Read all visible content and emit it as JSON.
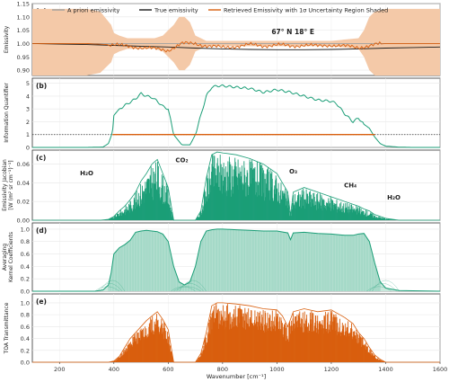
{
  "chart_data": [
    {
      "type": "line",
      "panel_label": "(a)",
      "ylabel": "Emissivity",
      "ylim": [
        0.88,
        1.15
      ],
      "yticks": [
        "0.90",
        "0.95",
        "1.00",
        "1.05",
        "1.10",
        "1.15"
      ],
      "annotation": "67° N 18° E",
      "legend": {
        "placement": "top",
        "entries": [
          {
            "label": "A priori emissivity",
            "color": "#a0a0a0"
          },
          {
            "label": "True emissivity",
            "color": "#1a1a1a"
          },
          {
            "label": "Retrieved Emissivity with 1σ Uncertainty Region Shaded",
            "color": "#d95f0e"
          }
        ]
      },
      "series": [
        {
          "name": "A priori emissivity",
          "x": [
            100,
            1600
          ],
          "values": [
            1.0,
            1.0
          ],
          "color": "#a0a0a0"
        },
        {
          "name": "True emissivity",
          "x": [
            100,
            200,
            300,
            400,
            500,
            600,
            700,
            800,
            900,
            1000,
            1100,
            1200,
            1300,
            1400,
            1500,
            1600
          ],
          "values": [
            1.0,
            0.998,
            0.996,
            0.993,
            0.99,
            0.987,
            0.983,
            0.98,
            0.978,
            0.977,
            0.977,
            0.978,
            0.98,
            0.983,
            0.985,
            0.987
          ],
          "color": "#1a1a1a"
        },
        {
          "name": "Retrieved Emissivity with 1σ Uncertainty Region Shaded",
          "x": [
            100,
            300,
            400,
            450,
            500,
            550,
            600,
            650,
            700,
            750,
            800,
            850,
            900,
            950,
            1000,
            1050,
            1100,
            1150,
            1200,
            1250,
            1300,
            1350,
            1400,
            1600
          ],
          "values": [
            1.0,
            1.0,
            0.995,
            0.99,
            0.985,
            0.98,
            0.975,
            1.0,
            1.0,
            0.99,
            0.985,
            0.99,
            0.995,
            0.992,
            0.995,
            0.99,
            0.995,
            0.99,
            0.995,
            0.99,
            0.985,
            0.995,
            1.0,
            1.0
          ],
          "color": "#d95f0e"
        }
      ],
      "uncertainty_band": {
        "x": [
          100,
          300,
          350,
          390,
          400,
          420,
          450,
          500,
          550,
          580,
          600,
          620,
          640,
          660,
          680,
          700,
          720,
          740,
          760,
          800,
          900,
          1000,
          1100,
          1200,
          1300,
          1320,
          1340,
          1360,
          1400,
          1500,
          1600
        ],
        "upper": [
          1.13,
          1.13,
          1.12,
          1.07,
          1.04,
          1.03,
          1.02,
          1.02,
          1.02,
          1.03,
          1.05,
          1.07,
          1.1,
          1.1,
          1.08,
          1.03,
          1.02,
          1.01,
          1.01,
          1.01,
          1.01,
          1.01,
          1.01,
          1.01,
          1.02,
          1.05,
          1.1,
          1.12,
          1.13,
          1.13,
          1.13
        ],
        "lower": [
          0.88,
          0.88,
          0.89,
          0.93,
          0.96,
          0.97,
          0.98,
          0.98,
          0.98,
          0.97,
          0.95,
          0.93,
          0.9,
          0.9,
          0.92,
          0.97,
          0.98,
          0.99,
          0.99,
          0.99,
          0.99,
          0.99,
          0.99,
          0.99,
          0.98,
          0.95,
          0.9,
          0.88,
          0.88,
          0.88,
          0.88
        ],
        "color": "#f4c9a8"
      }
    },
    {
      "type": "line",
      "panel_label": "(b)",
      "ylabel": "Information Quantifier",
      "ylim": [
        0,
        5.4
      ],
      "yticks": [
        "0",
        "1",
        "2",
        "3",
        "4",
        "5"
      ],
      "series": [
        {
          "x": [
            100,
            300,
            360,
            380,
            395,
            400,
            420,
            450,
            480,
            500,
            520,
            540,
            560,
            580,
            600,
            620,
            650,
            680,
            700,
            720,
            740,
            760,
            780,
            800,
            850,
            900,
            950,
            1000,
            1050,
            1100,
            1150,
            1200,
            1220,
            1250,
            1280,
            1300,
            1320,
            1340,
            1360,
            1380,
            1400,
            1450,
            1500,
            1600
          ],
          "values": [
            0,
            0,
            0.03,
            0.3,
            1.2,
            2.5,
            3.0,
            3.4,
            3.8,
            4.2,
            4.0,
            3.9,
            3.6,
            3.2,
            3.0,
            1.0,
            0.2,
            0.2,
            1.0,
            2.5,
            4.0,
            4.7,
            4.8,
            4.8,
            4.7,
            4.6,
            4.3,
            4.5,
            4.3,
            4.0,
            3.7,
            3.6,
            3.4,
            2.6,
            2.0,
            2.3,
            1.8,
            1.5,
            0.8,
            0.3,
            0.1,
            0.02,
            0,
            0
          ],
          "color": "#1b9e77"
        },
        {
          "x": [
            395,
            1360
          ],
          "values": [
            1.0,
            1.0
          ],
          "color": "#d95f0e"
        }
      ],
      "reference_line": {
        "y": 1.0,
        "style": "dotted",
        "color": "#333333"
      }
    },
    {
      "type": "line",
      "panel_label": "(c)",
      "ylabel": "Emissivity Jacobian [W (m² sr cm⁻¹)⁻¹]",
      "ylim": [
        0,
        0.075
      ],
      "yticks": [
        "0.00",
        "0.02",
        "0.04",
        "0.06"
      ],
      "annotations": [
        "H₂O",
        "CO₂",
        "O₃",
        "CH₄",
        "H₂O"
      ],
      "envelope": {
        "x": [
          100,
          350,
          380,
          400,
          420,
          440,
          460,
          480,
          500,
          520,
          540,
          560,
          580,
          600,
          620,
          640,
          660,
          680,
          700,
          720,
          740,
          760,
          780,
          800,
          850,
          900,
          950,
          1000,
          1020,
          1040,
          1050,
          1060,
          1100,
          1150,
          1200,
          1250,
          1300,
          1320,
          1340,
          1360,
          1380,
          1400,
          1450,
          1600
        ],
        "values": [
          0,
          0,
          0.001,
          0.004,
          0.01,
          0.015,
          0.022,
          0.03,
          0.042,
          0.05,
          0.06,
          0.065,
          0.05,
          0.035,
          0.0,
          0.0,
          0.0,
          0.0,
          0.0,
          0.01,
          0.045,
          0.07,
          0.073,
          0.072,
          0.07,
          0.066,
          0.06,
          0.05,
          0.04,
          0.03,
          0.005,
          0.03,
          0.035,
          0.03,
          0.025,
          0.02,
          0.015,
          0.012,
          0.01,
          0.006,
          0.004,
          0.002,
          0.0,
          0.0
        ],
        "color": "#1b9e77"
      }
    },
    {
      "type": "line",
      "panel_label": "(d)",
      "ylabel": "Averaging Kernel Coefficients",
      "ylim": [
        0,
        1.1
      ],
      "yticks": [
        "0.0",
        "0.2",
        "0.4",
        "0.6",
        "0.8",
        "1.0"
      ],
      "envelope": {
        "x": [
          100,
          330,
          360,
          380,
          390,
          400,
          420,
          440,
          460,
          480,
          500,
          520,
          540,
          560,
          580,
          600,
          620,
          640,
          660,
          680,
          700,
          720,
          740,
          760,
          780,
          800,
          850,
          900,
          950,
          1000,
          1040,
          1050,
          1060,
          1100,
          1150,
          1200,
          1250,
          1280,
          1300,
          1320,
          1340,
          1360,
          1380,
          1400,
          1450,
          1600
        ],
        "values": [
          0,
          0,
          0.02,
          0.1,
          0.3,
          0.6,
          0.7,
          0.75,
          0.82,
          0.95,
          0.97,
          0.98,
          0.97,
          0.96,
          0.92,
          0.8,
          0.4,
          0.15,
          0.1,
          0.15,
          0.4,
          0.8,
          0.97,
          0.99,
          1.0,
          1.0,
          0.99,
          0.98,
          0.97,
          0.97,
          0.94,
          0.83,
          0.94,
          0.95,
          0.93,
          0.92,
          0.9,
          0.9,
          0.92,
          0.93,
          0.8,
          0.45,
          0.15,
          0.05,
          0.01,
          0
        ],
        "color": "#1b9e77",
        "fill": "#c8e8dc"
      }
    },
    {
      "type": "line",
      "panel_label": "(e)",
      "ylabel": "TOA Transmittance",
      "xlabel": "Wavenumber [cm⁻¹]",
      "ylim": [
        0,
        1.15
      ],
      "yticks": [
        "0.0",
        "0.2",
        "0.4",
        "0.6",
        "0.8",
        "1.0"
      ],
      "xlim": [
        100,
        1600
      ],
      "xticks": [
        200,
        400,
        600,
        800,
        1000,
        1200,
        1400,
        1600
      ],
      "envelope": {
        "x": [
          100,
          380,
          400,
          420,
          440,
          460,
          480,
          500,
          520,
          540,
          560,
          580,
          600,
          620,
          640,
          660,
          680,
          700,
          720,
          740,
          760,
          780,
          800,
          850,
          900,
          950,
          1000,
          1020,
          1040,
          1060,
          1100,
          1150,
          1200,
          1250,
          1280,
          1300,
          1320,
          1340,
          1360,
          1380,
          1400,
          1600
        ],
        "values": [
          0,
          0,
          0.02,
          0.1,
          0.25,
          0.4,
          0.5,
          0.6,
          0.7,
          0.78,
          0.85,
          0.72,
          0.55,
          0.0,
          0.0,
          0.0,
          0.0,
          0.0,
          0.15,
          0.5,
          0.95,
          1.0,
          1.0,
          0.98,
          0.95,
          0.9,
          0.88,
          0.78,
          0.6,
          0.85,
          0.9,
          0.85,
          0.88,
          0.75,
          0.65,
          0.5,
          0.4,
          0.25,
          0.12,
          0.05,
          0.0,
          0.0
        ],
        "color": "#d95f0e"
      }
    }
  ]
}
